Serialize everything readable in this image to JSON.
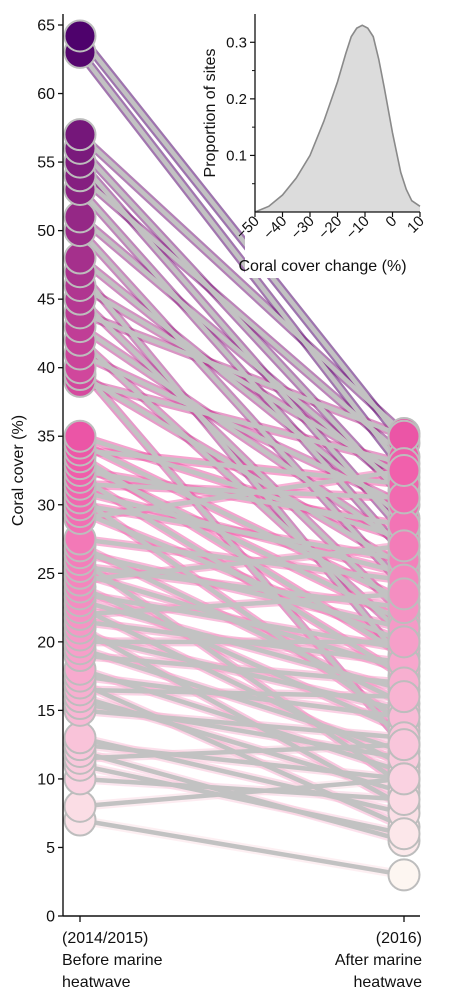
{
  "chart_data": [
    {
      "type": "slope",
      "ylabel": "Coral cover (%)",
      "ylim": [
        0,
        65
      ],
      "y_ticks": [
        "0",
        "5",
        "10",
        "15",
        "20",
        "25",
        "30",
        "35",
        "40",
        "45",
        "50",
        "55",
        "60",
        "65"
      ],
      "x_groups": [
        {
          "period": "(2014/2015)",
          "line1": "Before marine",
          "line2": "heatwave"
        },
        {
          "period": "(2016)",
          "line1": "After marine",
          "line2": "heatwave"
        }
      ],
      "color_scale": {
        "low": "#fdf6f1",
        "mid": "#f058a8",
        "high": "#4a006a"
      },
      "connector_color": "#c2c2c2",
      "sites": [
        {
          "before": 64.2,
          "after": 34.5
        },
        {
          "before": 63.0,
          "after": 32.5
        },
        {
          "before": 57.0,
          "after": 35.2
        },
        {
          "before": 56.0,
          "after": 30.5
        },
        {
          "before": 55.0,
          "after": 28.0
        },
        {
          "before": 54.0,
          "after": 33.5
        },
        {
          "before": 53.0,
          "after": 26.5
        },
        {
          "before": 51.0,
          "after": 31.0
        },
        {
          "before": 50.0,
          "after": 24.0
        },
        {
          "before": 48.0,
          "after": 29.0
        },
        {
          "before": 47.0,
          "after": 18.5
        },
        {
          "before": 46.0,
          "after": 32.0
        },
        {
          "before": 45.0,
          "after": 22.0
        },
        {
          "before": 44.0,
          "after": 35.0
        },
        {
          "before": 43.0,
          "after": 27.0
        },
        {
          "before": 42.0,
          "after": 20.5
        },
        {
          "before": 41.0,
          "after": 30.0
        },
        {
          "before": 40.0,
          "after": 12.5
        },
        {
          "before": 39.5,
          "after": 25.5
        },
        {
          "before": 39.0,
          "after": 33.0
        },
        {
          "before": 35.0,
          "after": 27.5
        },
        {
          "before": 34.5,
          "after": 23.0
        },
        {
          "before": 34.0,
          "after": 31.5
        },
        {
          "before": 33.5,
          "after": 19.0
        },
        {
          "before": 33.0,
          "after": 21.5
        },
        {
          "before": 32.5,
          "after": 28.5
        },
        {
          "before": 32.0,
          "after": 17.5
        },
        {
          "before": 31.5,
          "after": 30.5
        },
        {
          "before": 31.0,
          "after": 25.0
        },
        {
          "before": 30.5,
          "after": 14.0
        },
        {
          "before": 30.0,
          "after": 26.0
        },
        {
          "before": 29.5,
          "after": 20.0
        },
        {
          "before": 29.0,
          "after": 32.5
        },
        {
          "before": 27.5,
          "after": 24.5
        },
        {
          "before": 27.0,
          "after": 15.5
        },
        {
          "before": 26.5,
          "after": 21.0
        },
        {
          "before": 26.0,
          "after": 9.5
        },
        {
          "before": 25.5,
          "after": 22.5
        },
        {
          "before": 25.0,
          "after": 18.0
        },
        {
          "before": 24.5,
          "after": 27.0
        },
        {
          "before": 24.0,
          "after": 13.5
        },
        {
          "before": 23.5,
          "after": 19.5
        },
        {
          "before": 23.0,
          "after": 16.5
        },
        {
          "before": 22.5,
          "after": 11.0
        },
        {
          "before": 22.0,
          "after": 23.5
        },
        {
          "before": 21.5,
          "after": 18.5
        },
        {
          "before": 21.0,
          "after": 8.0
        },
        {
          "before": 20.5,
          "after": 15.0
        },
        {
          "before": 20.0,
          "after": 20.0
        },
        {
          "before": 19.5,
          "after": 12.0
        },
        {
          "before": 19.0,
          "after": 17.0
        },
        {
          "before": 18.0,
          "after": 10.5
        },
        {
          "before": 17.5,
          "after": 14.5
        },
        {
          "before": 17.0,
          "after": 6.5
        },
        {
          "before": 16.5,
          "after": 16.0
        },
        {
          "before": 16.0,
          "after": 9.0
        },
        {
          "before": 15.5,
          "after": 11.5
        },
        {
          "before": 15.0,
          "after": 13.0
        },
        {
          "before": 13.0,
          "after": 7.5
        },
        {
          "before": 12.5,
          "after": 10.0
        },
        {
          "before": 12.0,
          "after": 5.5
        },
        {
          "before": 11.5,
          "after": 12.5
        },
        {
          "before": 11.0,
          "after": 6.0
        },
        {
          "before": 10.0,
          "after": 8.5
        },
        {
          "before": 8.0,
          "after": 10.0
        },
        {
          "before": 7.0,
          "after": 3.0
        }
      ]
    },
    {
      "type": "area",
      "xlabel": "Coral cover change (%)",
      "ylabel": "Proportion of sites",
      "xlim": [
        -50,
        10
      ],
      "ylim": [
        0,
        0.35
      ],
      "x_ticks": [
        "−50",
        "−40",
        "−30",
        "−20",
        "−10",
        "0",
        "10"
      ],
      "y_ticks": [
        "0.1",
        "0.2",
        "0.3"
      ],
      "fill_color": "#dcdcdc",
      "line_color": "#8a8a8a",
      "x": [
        -50,
        -45,
        -40,
        -35,
        -30,
        -25,
        -20,
        -17,
        -15,
        -13,
        -11,
        -9,
        -7,
        -5,
        -3,
        0,
        3,
        5,
        7,
        10
      ],
      "y": [
        0.0,
        0.01,
        0.03,
        0.06,
        0.1,
        0.16,
        0.23,
        0.28,
        0.31,
        0.325,
        0.33,
        0.325,
        0.31,
        0.27,
        0.22,
        0.14,
        0.07,
        0.04,
        0.02,
        0.01
      ]
    }
  ]
}
